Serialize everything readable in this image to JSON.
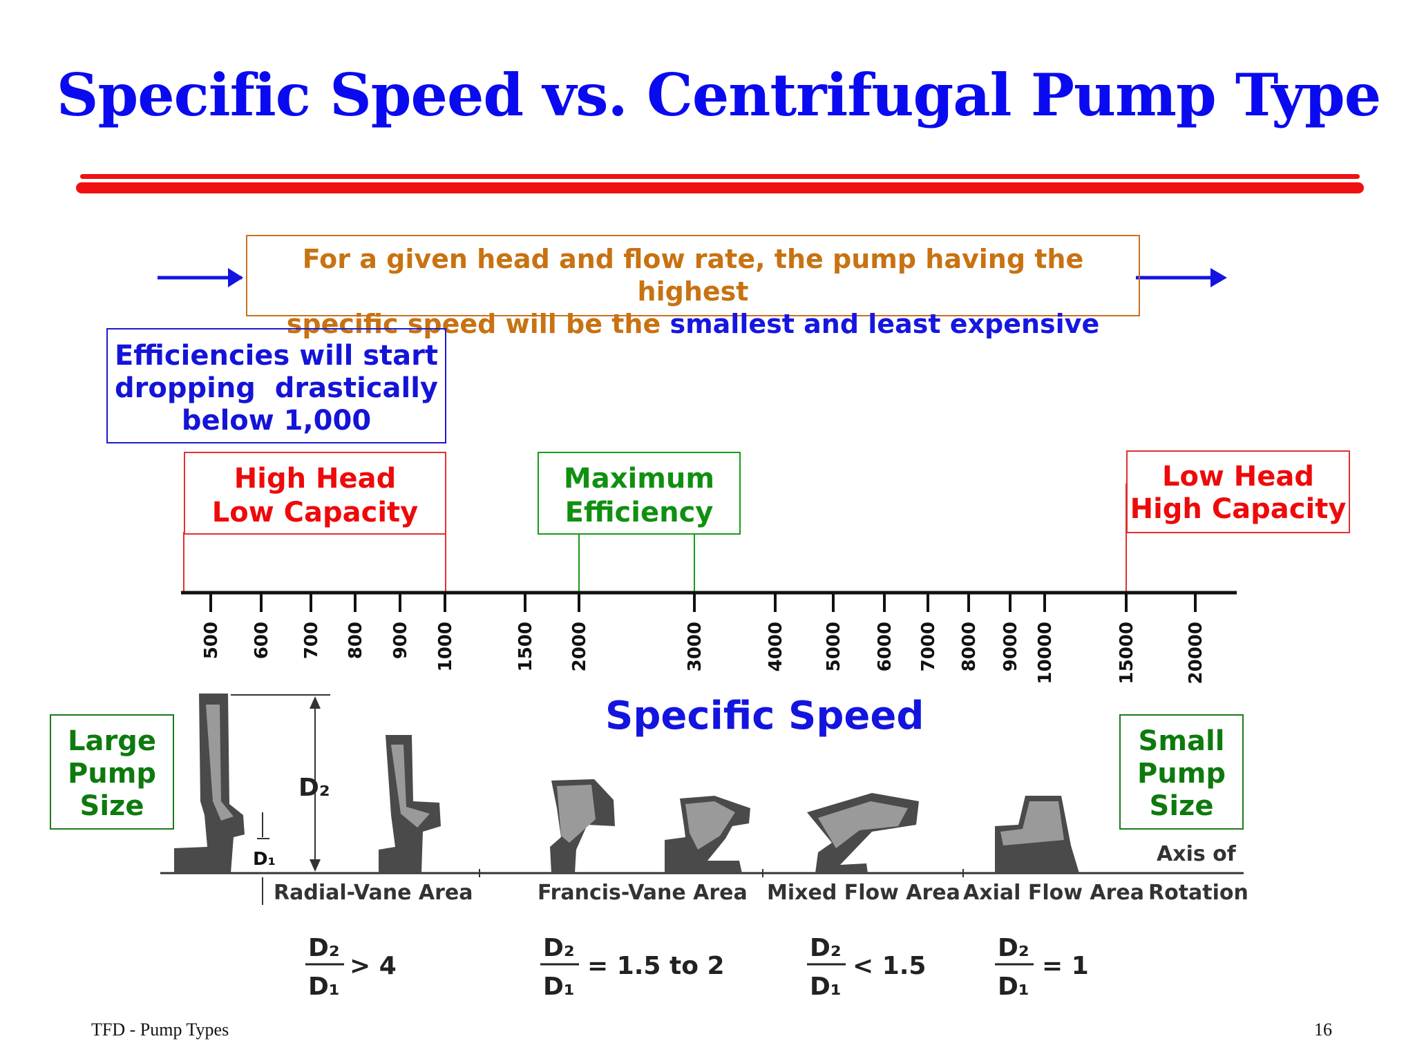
{
  "title": "Specific Speed vs. Centrifugal Pump Type",
  "message": {
    "line1": "For a given head and flow rate, the pump having the highest",
    "line2_prefix": "specific speed will be the ",
    "line2_highlight": "smallest and least expensive"
  },
  "efficiency_note": [
    "Efficiencies will start",
    "dropping  drastically",
    "below 1,000"
  ],
  "high_head": [
    "High Head",
    "Low Capacity"
  ],
  "maximum_efficiency": [
    "Maximum",
    "Efficiency"
  ],
  "low_head": [
    "Low Head",
    "High Capacity"
  ],
  "large_pump": [
    "Large",
    "Pump",
    "Size"
  ],
  "small_pump": [
    "Small",
    "Pump",
    "Size"
  ],
  "axis_label": "Specific Speed",
  "ticks": [
    "500",
    "600",
    "700",
    "800",
    "900",
    "1000",
    "1500",
    "2000",
    "3000",
    "4000",
    "5000",
    "6000",
    "7000",
    "8000",
    "9000",
    "10000",
    "15000",
    "20000"
  ],
  "impellers": {
    "d2_label": "D2",
    "d1_label": "D1",
    "areas": [
      "Radial-Vane Area",
      "Francis-Vane Area",
      "Mixed Flow Area",
      "Axial Flow Area"
    ],
    "axis_of_rotation": [
      "Axis of",
      "Rotation"
    ]
  },
  "ratios": [
    {
      "num": "D2",
      "den": "D1",
      "rel": "> 4"
    },
    {
      "num": "D2",
      "den": "D1",
      "rel": "= 1.5 to 2"
    },
    {
      "num": "D2",
      "den": "D1",
      "rel": "< 1.5"
    },
    {
      "num": "D2",
      "den": "D1",
      "rel": "= 1"
    }
  ],
  "footer": {
    "left": "TFD - Pump Types",
    "page": "16"
  },
  "colors": {
    "title_blue": "#0a0af0",
    "rule_red": "#f01010",
    "orange": "#c87212",
    "green": "#109010",
    "red": "#ee0a0a"
  }
}
